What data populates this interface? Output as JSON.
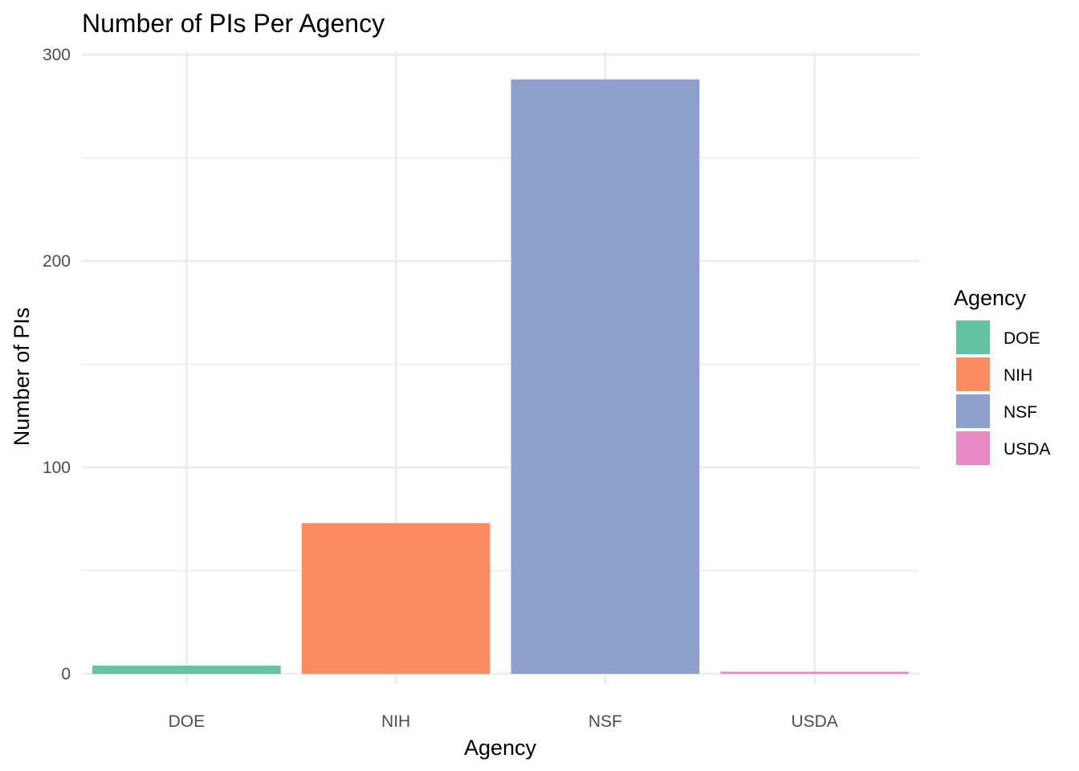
{
  "chart_data": {
    "type": "bar",
    "title": "Number of PIs Per Agency",
    "xlabel": "Agency",
    "ylabel": "Number of PIs",
    "categories": [
      "DOE",
      "NIH",
      "NSF",
      "USDA"
    ],
    "values": [
      4,
      73,
      288,
      1
    ],
    "colors": [
      "#66c2a5",
      "#fc8d62",
      "#8da0cb",
      "#e78ac3"
    ],
    "ylim": [
      0,
      300
    ],
    "yticks": [
      0,
      100,
      200,
      300
    ],
    "grid": true,
    "legend": {
      "title": "Agency",
      "placement": "right",
      "entries": [
        "DOE",
        "NIH",
        "NSF",
        "USDA"
      ]
    }
  }
}
